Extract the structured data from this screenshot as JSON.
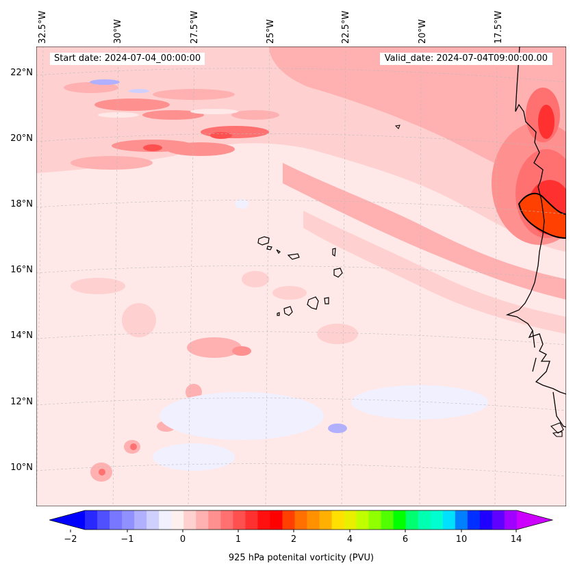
{
  "map": {
    "start_date_label": "Start date: 2024-07-04_00:00:00",
    "valid_date_label": "Valid_date: 2024-07-04T09:00:00.00",
    "lon_labels": [
      "32.5°W",
      "30°W",
      "27.5°W",
      "25°W",
      "22.5°W",
      "20°W",
      "17.5°W"
    ],
    "lat_labels": [
      "22°N",
      "20°N",
      "18°N",
      "16°N",
      "14°N",
      "12°N",
      "10°N"
    ],
    "field": "925 hPa potential vorticity",
    "colors": {
      "background": "#ffe8e8",
      "light_pink": "#ffd0d0",
      "pink": "#ffb0b0",
      "salmon": "#ff8a8a",
      "red": "#ff5a5a",
      "strong_red": "#ff2a2a",
      "orange_red": "#ff4000",
      "pale_blue": "#eeeeff",
      "blue": "#b0b0ff",
      "coast": "#000000"
    }
  },
  "colorbar": {
    "label": "925 hPa potenital vorticity (PVU)",
    "tick_labels": [
      "−2",
      "−1",
      "0",
      "1",
      "2",
      "4",
      "6",
      "10",
      "14"
    ],
    "colors": [
      "#0000ff",
      "#2828ff",
      "#5050ff",
      "#7777ff",
      "#9090ff",
      "#b0b0ff",
      "#d0d0ff",
      "#f0f0ff",
      "#fff0f0",
      "#ffd0d0",
      "#ffb0b0",
      "#ff9090",
      "#ff7070",
      "#ff5050",
      "#ff3030",
      "#ff1010",
      "#ff0000",
      "#ff4000",
      "#ff7000",
      "#ff9000",
      "#ffb000",
      "#ffe000",
      "#e8f000",
      "#c0ff00",
      "#90ff00",
      "#50ff00",
      "#00ff00",
      "#00ff70",
      "#00ffb0",
      "#00ffd0",
      "#00e0ff",
      "#0080ff",
      "#0030ff",
      "#2000ff",
      "#6000ff",
      "#a000ff",
      "#cc00ff"
    ]
  }
}
